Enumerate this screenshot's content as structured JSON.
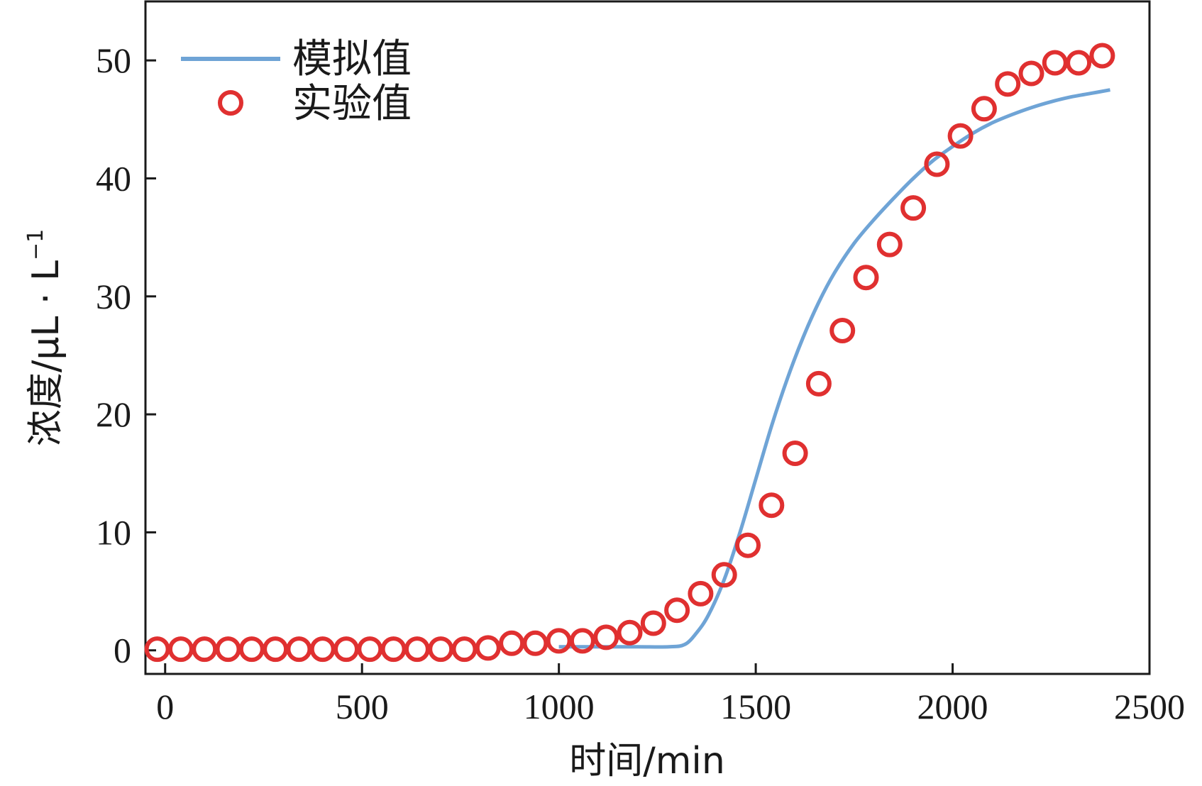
{
  "chart_data": {
    "type": "line",
    "title": "",
    "xlabel": "时间/min",
    "ylabel": "浓度/μL · L",
    "ylabel_sup": "−1",
    "xlim": [
      -50,
      2500
    ],
    "ylim": [
      -2,
      55
    ],
    "xticks": [
      0,
      500,
      1000,
      1500,
      2000,
      2500
    ],
    "yticks": [
      0,
      10,
      20,
      30,
      40,
      50
    ],
    "legend_position": "top-left",
    "colors": {
      "simulated": "#6fa4d6",
      "experimental": "#e03030",
      "axis": "#1a1a1a"
    },
    "series": [
      {
        "name": "模拟值",
        "style": "line",
        "x": [
          1000,
          1100,
          1200,
          1280,
          1320,
          1350,
          1380,
          1420,
          1460,
          1500,
          1540,
          1580,
          1620,
          1660,
          1700,
          1750,
          1800,
          1850,
          1900,
          1950,
          2000,
          2050,
          2100,
          2150,
          2200,
          2250,
          2300,
          2350,
          2400
        ],
        "y": [
          0.3,
          0.3,
          0.3,
          0.3,
          0.5,
          1.5,
          3.0,
          6.0,
          10.0,
          14.5,
          19.0,
          23.0,
          26.5,
          29.5,
          32.0,
          34.5,
          36.5,
          38.3,
          40.0,
          41.5,
          42.7,
          43.8,
          44.7,
          45.4,
          46.0,
          46.5,
          46.9,
          47.2,
          47.5
        ]
      },
      {
        "name": "实验值",
        "style": "marker",
        "x": [
          -20,
          40,
          100,
          160,
          220,
          280,
          340,
          400,
          460,
          520,
          580,
          640,
          700,
          760,
          820,
          880,
          940,
          1000,
          1060,
          1120,
          1180,
          1240,
          1300,
          1360,
          1420,
          1480,
          1540,
          1600,
          1660,
          1720,
          1780,
          1840,
          1900,
          1960,
          2020,
          2080,
          2140,
          2200,
          2260,
          2320,
          2380
        ],
        "y": [
          0.1,
          0.1,
          0.1,
          0.1,
          0.1,
          0.1,
          0.1,
          0.1,
          0.1,
          0.1,
          0.1,
          0.1,
          0.1,
          0.1,
          0.2,
          0.6,
          0.6,
          0.8,
          0.8,
          1.1,
          1.5,
          2.3,
          3.4,
          4.8,
          6.4,
          8.9,
          12.3,
          16.7,
          22.6,
          27.1,
          31.6,
          34.4,
          37.5,
          41.2,
          43.6,
          45.9,
          48.0,
          48.9,
          49.8,
          49.8,
          50.4
        ]
      }
    ]
  }
}
